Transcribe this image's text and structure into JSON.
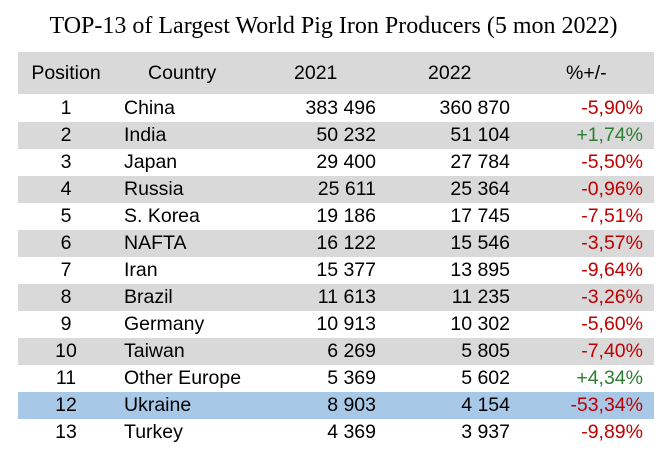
{
  "title": "TOP-13 of Largest World Pig Iron Producers (5 mon 2022)",
  "colors": {
    "row_shade": "#d9d9d9",
    "highlight": "#a8c8e8",
    "negative": "#c00000",
    "positive": "#2e7d32"
  },
  "table": {
    "headers": {
      "position": "Position",
      "country": "Country",
      "y2021": "2021",
      "y2022": "2022",
      "change": "%+/-"
    },
    "rows": [
      {
        "position": "1",
        "country": "China",
        "y2021": "383 496",
        "y2022": "360 870",
        "change": "-5,90%"
      },
      {
        "position": "2",
        "country": "India",
        "y2021": "50 232",
        "y2022": "51 104",
        "change": "+1,74%"
      },
      {
        "position": "3",
        "country": "Japan",
        "y2021": "29 400",
        "y2022": "27 784",
        "change": "-5,50%"
      },
      {
        "position": "4",
        "country": "Russia",
        "y2021": "25 611",
        "y2022": "25 364",
        "change": "-0,96%"
      },
      {
        "position": "5",
        "country": "S. Korea",
        "y2021": "19 186",
        "y2022": "17 745",
        "change": "-7,51%"
      },
      {
        "position": "6",
        "country": "NAFTA",
        "y2021": "16 122",
        "y2022": "15 546",
        "change": "-3,57%"
      },
      {
        "position": "7",
        "country": "Iran",
        "y2021": "15 377",
        "y2022": "13 895",
        "change": "-9,64%"
      },
      {
        "position": "8",
        "country": "Brazil",
        "y2021": "11 613",
        "y2022": "11 235",
        "change": "-3,26%"
      },
      {
        "position": "9",
        "country": "Germany",
        "y2021": "10 913",
        "y2022": "10 302",
        "change": "-5,60%"
      },
      {
        "position": "10",
        "country": "Taiwan",
        "y2021": "6 269",
        "y2022": "5 805",
        "change": "-7,40%"
      },
      {
        "position": "11",
        "country": "Other Europe",
        "y2021": "5 369",
        "y2022": "5 602",
        "change": "+4,34%"
      },
      {
        "position": "12",
        "country": "Ukraine",
        "y2021": "8 903",
        "y2022": "4 154",
        "change": "-53,34%"
      },
      {
        "position": "13",
        "country": "Turkey",
        "y2021": "4 369",
        "y2022": "3 937",
        "change": "-9,89%"
      }
    ]
  }
}
